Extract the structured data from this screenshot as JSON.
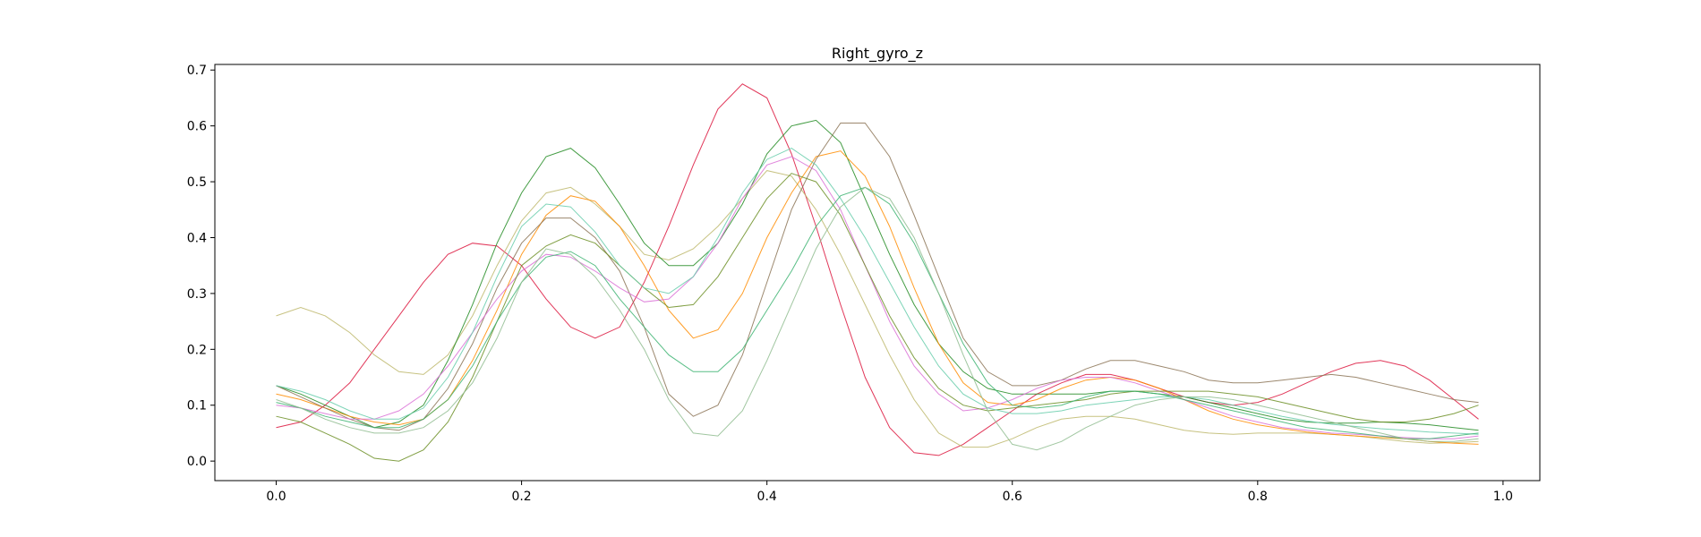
{
  "chart_data": {
    "type": "line",
    "title": "Right_gyro_z",
    "xlabel": "",
    "ylabel": "",
    "xlim": [
      -0.05,
      1.03
    ],
    "ylim": [
      -0.035,
      0.71
    ],
    "xticks": [
      0.0,
      0.2,
      0.4,
      0.6,
      0.8,
      1.0
    ],
    "xtick_labels": [
      "0.0",
      "0.2",
      "0.4",
      "0.6",
      "0.8",
      "1.0"
    ],
    "yticks": [
      0.0,
      0.1,
      0.2,
      0.3,
      0.4,
      0.5,
      0.6,
      0.7
    ],
    "ytick_labels": [
      "0.0",
      "0.1",
      "0.2",
      "0.3",
      "0.4",
      "0.5",
      "0.6",
      "0.7"
    ],
    "grid": false,
    "legend": "none",
    "x": [
      0.0,
      0.02,
      0.04,
      0.06,
      0.08,
      0.1,
      0.12,
      0.14,
      0.16,
      0.18,
      0.2,
      0.22,
      0.24,
      0.26,
      0.28,
      0.3,
      0.32,
      0.34,
      0.36,
      0.38,
      0.4,
      0.42,
      0.44,
      0.46,
      0.48,
      0.5,
      0.52,
      0.54,
      0.56,
      0.58,
      0.6,
      0.62,
      0.64,
      0.66,
      0.68,
      0.7,
      0.72,
      0.74,
      0.76,
      0.78,
      0.8,
      0.82,
      0.84,
      0.86,
      0.88,
      0.9,
      0.92,
      0.94,
      0.96,
      0.98
    ],
    "series": [
      {
        "color": "#dc143c",
        "values": [
          0.06,
          0.07,
          0.1,
          0.14,
          0.2,
          0.26,
          0.32,
          0.37,
          0.39,
          0.385,
          0.35,
          0.29,
          0.24,
          0.22,
          0.24,
          0.32,
          0.42,
          0.53,
          0.63,
          0.675,
          0.65,
          0.55,
          0.42,
          0.28,
          0.15,
          0.06,
          0.015,
          0.01,
          0.03,
          0.06,
          0.09,
          0.12,
          0.14,
          0.155,
          0.155,
          0.145,
          0.13,
          0.115,
          0.105,
          0.1,
          0.105,
          0.12,
          0.14,
          0.16,
          0.175,
          0.18,
          0.17,
          0.145,
          0.11,
          0.075
        ]
      },
      {
        "color": "#bdb76b",
        "values": [
          0.26,
          0.275,
          0.26,
          0.23,
          0.19,
          0.16,
          0.155,
          0.19,
          0.26,
          0.35,
          0.43,
          0.48,
          0.49,
          0.46,
          0.42,
          0.37,
          0.36,
          0.38,
          0.42,
          0.47,
          0.52,
          0.51,
          0.45,
          0.37,
          0.28,
          0.19,
          0.11,
          0.05,
          0.025,
          0.025,
          0.04,
          0.06,
          0.075,
          0.08,
          0.08,
          0.075,
          0.065,
          0.055,
          0.05,
          0.048,
          0.05,
          0.05,
          0.05,
          0.048,
          0.045,
          0.04,
          0.035,
          0.032,
          0.033,
          0.035
        ]
      },
      {
        "color": "#228b22",
        "values": [
          0.135,
          0.12,
          0.1,
          0.08,
          0.06,
          0.07,
          0.1,
          0.18,
          0.28,
          0.39,
          0.48,
          0.545,
          0.56,
          0.525,
          0.46,
          0.39,
          0.35,
          0.35,
          0.39,
          0.46,
          0.55,
          0.6,
          0.61,
          0.57,
          0.47,
          0.37,
          0.28,
          0.21,
          0.16,
          0.13,
          0.12,
          0.12,
          0.12,
          0.12,
          0.125,
          0.125,
          0.12,
          0.115,
          0.105,
          0.095,
          0.085,
          0.075,
          0.07,
          0.068,
          0.068,
          0.07,
          0.068,
          0.065,
          0.06,
          0.055
        ]
      },
      {
        "color": "#ff8c00",
        "values": [
          0.12,
          0.11,
          0.095,
          0.08,
          0.07,
          0.065,
          0.075,
          0.11,
          0.18,
          0.27,
          0.37,
          0.44,
          0.475,
          0.465,
          0.42,
          0.35,
          0.27,
          0.22,
          0.235,
          0.3,
          0.4,
          0.48,
          0.545,
          0.555,
          0.51,
          0.42,
          0.31,
          0.21,
          0.14,
          0.105,
          0.1,
          0.11,
          0.13,
          0.145,
          0.15,
          0.145,
          0.13,
          0.11,
          0.09,
          0.075,
          0.065,
          0.058,
          0.052,
          0.048,
          0.045,
          0.042,
          0.04,
          0.035,
          0.032,
          0.03
        ]
      },
      {
        "color": "#8b7355",
        "values": [
          0.135,
          0.115,
          0.095,
          0.075,
          0.06,
          0.055,
          0.075,
          0.13,
          0.21,
          0.31,
          0.39,
          0.435,
          0.435,
          0.4,
          0.34,
          0.24,
          0.12,
          0.08,
          0.1,
          0.19,
          0.32,
          0.45,
          0.54,
          0.605,
          0.605,
          0.545,
          0.44,
          0.33,
          0.22,
          0.16,
          0.135,
          0.135,
          0.145,
          0.165,
          0.18,
          0.18,
          0.17,
          0.16,
          0.145,
          0.14,
          0.14,
          0.145,
          0.15,
          0.155,
          0.15,
          0.14,
          0.13,
          0.12,
          0.11,
          0.105
        ]
      },
      {
        "color": "#da70d6",
        "values": [
          0.1,
          0.095,
          0.085,
          0.075,
          0.075,
          0.09,
          0.12,
          0.17,
          0.23,
          0.29,
          0.34,
          0.37,
          0.365,
          0.34,
          0.31,
          0.285,
          0.29,
          0.33,
          0.39,
          0.47,
          0.53,
          0.545,
          0.52,
          0.45,
          0.35,
          0.25,
          0.17,
          0.12,
          0.09,
          0.095,
          0.11,
          0.13,
          0.145,
          0.15,
          0.15,
          0.14,
          0.125,
          0.11,
          0.095,
          0.08,
          0.07,
          0.06,
          0.055,
          0.05,
          0.048,
          0.045,
          0.042,
          0.04,
          0.04,
          0.045
        ]
      },
      {
        "color": "#6b8e23",
        "values": [
          0.08,
          0.07,
          0.05,
          0.03,
          0.005,
          0.0,
          0.02,
          0.07,
          0.15,
          0.25,
          0.35,
          0.385,
          0.405,
          0.39,
          0.35,
          0.31,
          0.275,
          0.28,
          0.33,
          0.4,
          0.47,
          0.515,
          0.5,
          0.44,
          0.35,
          0.26,
          0.185,
          0.13,
          0.1,
          0.09,
          0.095,
          0.1,
          0.105,
          0.11,
          0.12,
          0.125,
          0.125,
          0.125,
          0.125,
          0.12,
          0.115,
          0.105,
          0.095,
          0.085,
          0.075,
          0.07,
          0.07,
          0.075,
          0.085,
          0.1
        ]
      },
      {
        "color": "#66cdaa",
        "values": [
          0.135,
          0.125,
          0.11,
          0.09,
          0.075,
          0.075,
          0.095,
          0.15,
          0.23,
          0.33,
          0.42,
          0.46,
          0.455,
          0.41,
          0.35,
          0.31,
          0.3,
          0.33,
          0.4,
          0.48,
          0.54,
          0.56,
          0.53,
          0.47,
          0.4,
          0.32,
          0.24,
          0.17,
          0.12,
          0.095,
          0.085,
          0.085,
          0.09,
          0.1,
          0.105,
          0.11,
          0.115,
          0.115,
          0.11,
          0.1,
          0.09,
          0.08,
          0.072,
          0.066,
          0.062,
          0.058,
          0.055,
          0.052,
          0.05,
          0.048
        ]
      },
      {
        "color": "#3cb371",
        "values": [
          0.105,
          0.095,
          0.08,
          0.07,
          0.06,
          0.06,
          0.075,
          0.11,
          0.17,
          0.25,
          0.32,
          0.365,
          0.375,
          0.35,
          0.29,
          0.24,
          0.19,
          0.16,
          0.16,
          0.2,
          0.27,
          0.34,
          0.42,
          0.475,
          0.49,
          0.46,
          0.39,
          0.3,
          0.21,
          0.14,
          0.1,
          0.095,
          0.1,
          0.115,
          0.125,
          0.125,
          0.12,
          0.11,
          0.1,
          0.09,
          0.08,
          0.07,
          0.06,
          0.055,
          0.05,
          0.045,
          0.04,
          0.04,
          0.045,
          0.05
        ]
      },
      {
        "color": "#8fbc8f",
        "values": [
          0.11,
          0.095,
          0.075,
          0.06,
          0.05,
          0.05,
          0.06,
          0.09,
          0.14,
          0.22,
          0.32,
          0.38,
          0.37,
          0.33,
          0.27,
          0.2,
          0.11,
          0.05,
          0.045,
          0.09,
          0.18,
          0.28,
          0.38,
          0.455,
          0.49,
          0.47,
          0.4,
          0.3,
          0.19,
          0.09,
          0.03,
          0.02,
          0.035,
          0.06,
          0.08,
          0.1,
          0.11,
          0.115,
          0.115,
          0.11,
          0.1,
          0.09,
          0.08,
          0.07,
          0.06,
          0.05,
          0.04,
          0.035,
          0.035,
          0.04
        ]
      }
    ]
  }
}
